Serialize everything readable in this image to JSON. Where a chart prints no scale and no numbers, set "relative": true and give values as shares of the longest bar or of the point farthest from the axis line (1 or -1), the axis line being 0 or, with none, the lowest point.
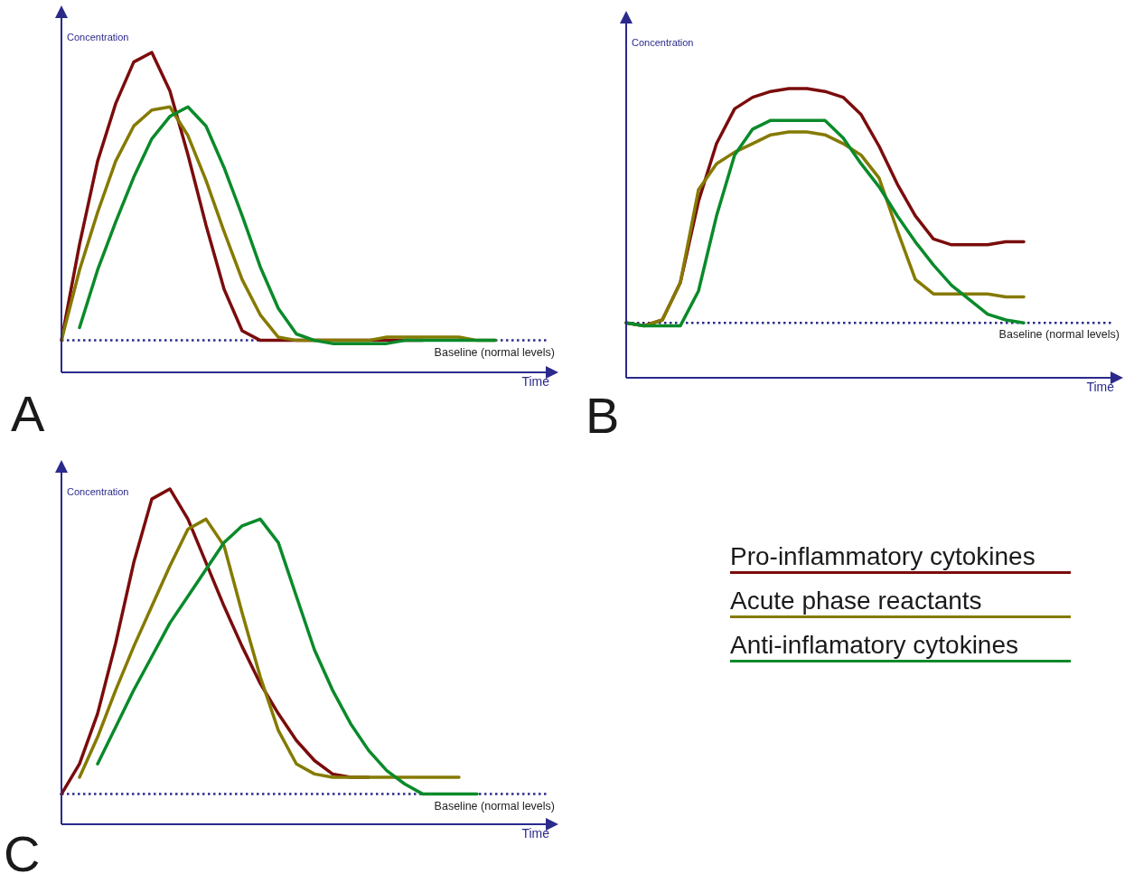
{
  "chart_data": [
    {
      "type": "line",
      "title": "A",
      "xlabel": "Time",
      "ylabel": "Concentration",
      "relative": true,
      "categories": [
        null,
        null,
        null,
        null,
        null,
        null,
        null,
        null,
        null,
        null,
        null,
        null,
        null,
        null,
        null,
        null,
        null,
        null,
        null,
        null,
        null,
        null,
        null,
        null,
        null
      ],
      "series": [
        {
          "color": "#7b0c0c",
          "values": [
            0.1,
            0.4,
            0.66,
            0.84,
            0.97,
            1,
            0.88,
            0.68,
            0.46,
            0.26,
            0.13,
            0.1,
            0.1,
            0.1,
            0.1,
            0.1,
            0.1,
            0.1,
            0.1,
            0.1,
            0.1,
            null,
            null,
            null,
            null
          ]
        },
        {
          "color": "#857a00",
          "values": [
            0.1,
            0.32,
            0.5,
            0.66,
            0.77,
            0.82,
            0.83,
            0.74,
            0.6,
            0.44,
            0.29,
            0.18,
            0.11,
            0.1,
            0.1,
            0.1,
            0.1,
            0.1,
            0.11,
            0.11,
            0.11,
            0.11,
            0.11,
            0.1,
            0.1
          ]
        },
        {
          "color": "#0a8a2a",
          "values": [
            null,
            0.14,
            0.32,
            0.47,
            0.61,
            0.73,
            0.8,
            0.83,
            0.77,
            0.64,
            0.49,
            0.33,
            0.2,
            0.12,
            0.1,
            0.09,
            0.09,
            0.09,
            0.09,
            0.1,
            0.1,
            0.1,
            0.1,
            0.1,
            0.1
          ]
        }
      ],
      "ref_lines": [
        {
          "axis": "y",
          "value": 0.1,
          "label": "Baseline (normal levels)",
          "color": "#2b2a8c",
          "line_style": "dotted"
        }
      ]
    },
    {
      "type": "line",
      "title": "B",
      "xlabel": "Time",
      "ylabel": "Concentration",
      "relative": true,
      "categories": [
        null,
        null,
        null,
        null,
        null,
        null,
        null,
        null,
        null,
        null,
        null,
        null,
        null,
        null,
        null,
        null,
        null,
        null,
        null,
        null,
        null,
        null,
        null
      ],
      "series": [
        {
          "color": "#7b0c0c",
          "values": [
            0.19,
            0.18,
            0.2,
            0.33,
            0.61,
            0.81,
            0.93,
            0.97,
            0.99,
            1,
            1,
            0.99,
            0.97,
            0.91,
            0.8,
            0.67,
            0.56,
            0.48,
            0.46,
            0.46,
            0.46,
            0.47,
            0.47
          ]
        },
        {
          "color": "#857a00",
          "values": [
            0.19,
            0.18,
            0.2,
            0.33,
            0.65,
            0.74,
            0.78,
            0.81,
            0.84,
            0.85,
            0.85,
            0.84,
            0.81,
            0.77,
            0.69,
            0.51,
            0.34,
            0.29,
            0.29,
            0.29,
            0.29,
            0.28,
            0.28
          ]
        },
        {
          "color": "#0a8a2a",
          "values": [
            0.19,
            0.18,
            0.18,
            0.18,
            0.3,
            0.56,
            0.77,
            0.86,
            0.89,
            0.89,
            0.89,
            0.89,
            0.83,
            0.74,
            0.66,
            0.56,
            0.47,
            0.39,
            0.32,
            0.27,
            0.22,
            0.2,
            0.19
          ]
        }
      ],
      "ref_lines": [
        {
          "axis": "y",
          "value": 0.19,
          "label": "Baseline (normal levels)",
          "color": "#2b2a8c",
          "line_style": "dotted"
        }
      ]
    },
    {
      "type": "line",
      "title": "C",
      "xlabel": "Time",
      "ylabel": "Concentration",
      "relative": true,
      "legend": "right",
      "categories": [
        null,
        null,
        null,
        null,
        null,
        null,
        null,
        null,
        null,
        null,
        null,
        null,
        null,
        null,
        null,
        null,
        null,
        null,
        null,
        null,
        null,
        null,
        null,
        null
      ],
      "series": [
        {
          "name": "Pro-inflammatory cytokines",
          "color": "#7b0c0c",
          "values": [
            0.09,
            0.18,
            0.33,
            0.54,
            0.78,
            0.97,
            1,
            0.91,
            0.78,
            0.65,
            0.53,
            0.42,
            0.33,
            0.25,
            0.19,
            0.15,
            0.14,
            0.14,
            null,
            null,
            null,
            null,
            null,
            null
          ]
        },
        {
          "name": "Acute phase reactants",
          "color": "#857a00",
          "values": [
            null,
            0.14,
            0.26,
            0.4,
            0.53,
            0.65,
            0.77,
            0.88,
            0.91,
            0.83,
            0.63,
            0.44,
            0.28,
            0.18,
            0.15,
            0.14,
            0.14,
            0.14,
            0.14,
            0.14,
            0.14,
            0.14,
            0.14,
            null
          ]
        },
        {
          "name": "Anti-inflamatory cytokines",
          "color": "#0a8a2a",
          "values": [
            null,
            null,
            0.18,
            0.29,
            0.4,
            0.5,
            0.6,
            0.68,
            0.76,
            0.84,
            0.89,
            0.91,
            0.84,
            0.68,
            0.52,
            0.4,
            0.3,
            0.22,
            0.16,
            0.12,
            0.09,
            0.09,
            0.09,
            0.09
          ]
        }
      ],
      "ref_lines": [
        {
          "axis": "y",
          "value": 0.09,
          "label": "Baseline (normal levels)",
          "color": "#2b2a8c",
          "line_style": "dotted"
        }
      ]
    }
  ]
}
